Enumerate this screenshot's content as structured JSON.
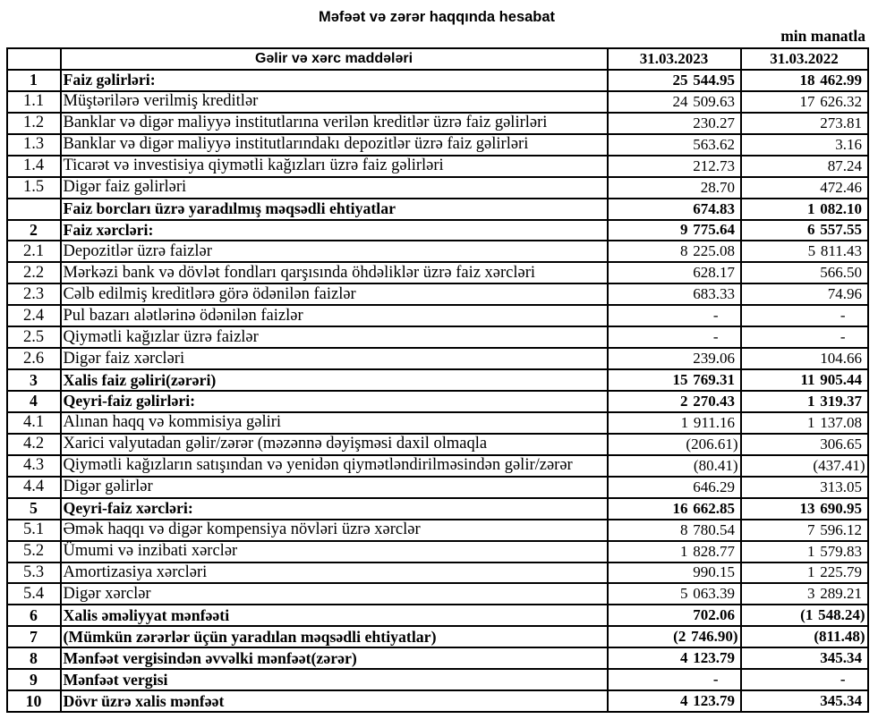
{
  "title": "Məfəət və zərər haqqında hesabat",
  "unit_note": "min manatla",
  "colors": {
    "background": "#ffffff",
    "text": "#000000",
    "border": "#000000"
  },
  "table": {
    "columns": {
      "number": "",
      "label": "Gəlir və xərc maddələri",
      "period_1": "31.03.2023",
      "period_2": "31.03.2022"
    },
    "rows": [
      {
        "num": "1",
        "label": "Faiz gəlirləri:",
        "v2023": "25 544.95",
        "v2022": "18 462.99",
        "bold": true
      },
      {
        "num": "1.1",
        "label": "Müştərilərə verilmiş kreditlər",
        "v2023": "24 509.63",
        "v2022": "17 626.32",
        "bold": false
      },
      {
        "num": "1.2",
        "label": "Banklar və digər maliyyə institutlarına verilən kreditlər üzrə faiz gəlirləri",
        "v2023": "230.27",
        "v2022": "273.81",
        "bold": false
      },
      {
        "num": "1.3",
        "label": "Banklar və digər maliyyə institutlarındakı depozitlər üzrə faiz gəlirləri",
        "v2023": "563.62",
        "v2022": "3.16",
        "bold": false
      },
      {
        "num": "1.4",
        "label": "Ticarət və investisiya qiymətli kağızları üzrə faiz gəlirləri",
        "v2023": "212.73",
        "v2022": "87.24",
        "bold": false
      },
      {
        "num": "1.5",
        "label": "Digər faiz gəlirləri",
        "v2023": "28.70",
        "v2022": "472.46",
        "bold": false
      },
      {
        "num": "",
        "label": "Faiz borcları üzrə yaradılmış məqsədli ehtiyatlar",
        "v2023": "674.83",
        "v2022": "1 082.10",
        "bold": true
      },
      {
        "num": "2",
        "label": "Faiz xərcləri:",
        "v2023": "9 775.64",
        "v2022": "6 557.55",
        "bold": true
      },
      {
        "num": "2.1",
        "label": "Depozitlər üzrə faizlər",
        "v2023": "8 225.08",
        "v2022": "5 811.43",
        "bold": false
      },
      {
        "num": "2.2",
        "label": "Mərkəzi bank və dövlət fondları qarşısında öhdəliklər üzrə faiz xərcləri",
        "v2023": "628.17",
        "v2022": "566.50",
        "bold": false
      },
      {
        "num": "2.3",
        "label": "Cəlb edilmiş kreditlərə görə ödənilən faizlər",
        "v2023": "683.33",
        "v2022": "74.96",
        "bold": false
      },
      {
        "num": "2.4",
        "label": "Pul bazarı alətlərinə ödənilən faizlər",
        "v2023": "-",
        "v2022": "-",
        "bold": false
      },
      {
        "num": "2.5",
        "label": "Qiymətli kağızlar üzrə faizlər",
        "v2023": "-",
        "v2022": "-",
        "bold": false
      },
      {
        "num": "2.6",
        "label": "Digər faiz xərcləri",
        "v2023": "239.06",
        "v2022": "104.66",
        "bold": false
      },
      {
        "num": "3",
        "label": "Xalis faiz gəliri(zərəri)",
        "v2023": "15 769.31",
        "v2022": "11 905.44",
        "bold": true
      },
      {
        "num": "4",
        "label": "Qeyri-faiz gəlirləri:",
        "v2023": "2 270.43",
        "v2022": "1 319.37",
        "bold": true
      },
      {
        "num": "4.1",
        "label": "Alınan haqq və kommisiya gəliri",
        "v2023": "1 911.16",
        "v2022": "1 137.08",
        "bold": false
      },
      {
        "num": "4.2",
        "label": "Xarici valyutadan gəlir/zərər (məzənnə dəyişməsi daxil olmaqla",
        "v2023": "(206.61)",
        "v2022": "306.65",
        "bold": false
      },
      {
        "num": "4.3",
        "label": "Qiymətli kağızların satışından və yenidən qiymətləndirilməsindən gəlir/zərər",
        "v2023": "(80.41)",
        "v2022": "(437.41)",
        "bold": false
      },
      {
        "num": "4.4",
        "label": "Digər gəlirlər",
        "v2023": "646.29",
        "v2022": "313.05",
        "bold": false
      },
      {
        "num": "5",
        "label": "Qeyri-faiz xərcləri:",
        "v2023": "16 662.85",
        "v2022": "13 690.95",
        "bold": true
      },
      {
        "num": "5.1",
        "label": "Əmək haqqı və digər kompensiya növləri üzrə xərclər",
        "v2023": "8 780.54",
        "v2022": "7 596.12",
        "bold": false
      },
      {
        "num": "5.2",
        "label": "Ümumi və inzibati xərclər",
        "v2023": "1 828.77",
        "v2022": "1 579.83",
        "bold": false
      },
      {
        "num": "5.3",
        "label": "Amortizasiya xərcləri",
        "v2023": "990.15",
        "v2022": "1 225.79",
        "bold": false
      },
      {
        "num": "5.4",
        "label": "Digər xərclər",
        "v2023": "5 063.39",
        "v2022": "3 289.21",
        "bold": false
      },
      {
        "num": "6",
        "label": "Xalis əməliyyat mənfəəti",
        "v2023": "702.06",
        "v2022": "(1 548.24)",
        "bold": true
      },
      {
        "num": "7",
        "label": "(Mümkün zərərlər üçün yaradılan məqsədli ehtiyatlar)",
        "v2023": "(2 746.90)",
        "v2022": "(811.48)",
        "bold": true
      },
      {
        "num": "8",
        "label": "Mənfəət vergisindən əvvəlki mənfəət(zərər)",
        "v2023": "4 123.79",
        "v2022": "345.34",
        "bold": true
      },
      {
        "num": "9",
        "label": "Mənfəət vergisi",
        "v2023": "-",
        "v2022": "-",
        "bold": true
      },
      {
        "num": "10",
        "label": "Dövr üzrə xalis mənfəət",
        "v2023": "4 123.79",
        "v2022": "345.34",
        "bold": true
      }
    ]
  }
}
